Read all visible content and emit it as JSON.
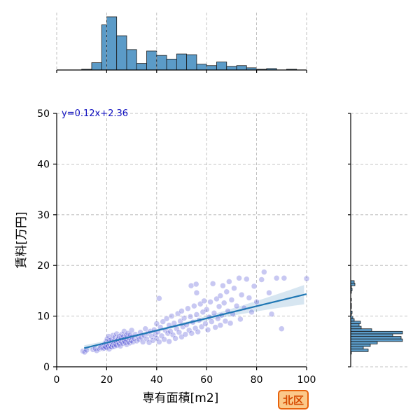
{
  "chart_data": {
    "type": "scatter",
    "title": "",
    "xlabel": "専有面積[m2]",
    "ylabel": "賃料[万円]",
    "xlim": [
      0,
      100
    ],
    "ylim": [
      0,
      50
    ],
    "x_ticks": [
      "0",
      "20",
      "40",
      "60",
      "80",
      "100"
    ],
    "y_ticks": [
      "0",
      "10",
      "20",
      "30",
      "40",
      "50"
    ],
    "grid": true,
    "regression": {
      "equation": "y=0.12x+2.36",
      "slope": 0.12,
      "intercept": 2.36,
      "x_range": [
        11,
        100
      ]
    },
    "badge": "北区",
    "colors": {
      "points": "#3a3ad0",
      "line": "#1f77b4",
      "hist": "#5b9bc8",
      "equation": "#1010c0",
      "badge_fill": "#fbc98a",
      "badge_border": "#e8620c"
    },
    "marginal_x_hist": {
      "bin_edges": [
        10,
        14,
        18,
        20,
        24,
        28,
        32,
        36,
        40,
        44,
        48,
        52,
        56,
        60,
        64,
        68,
        72,
        76,
        80,
        84,
        88,
        92,
        96,
        100
      ],
      "counts": [
        1,
        10,
        62,
        73,
        47,
        28,
        9,
        26,
        20,
        15,
        22,
        21,
        8,
        6,
        11,
        5,
        6,
        3,
        1,
        2,
        0,
        1,
        0
      ]
    },
    "marginal_y_hist": {
      "bin_edges": [
        2.5,
        3.0,
        3.5,
        4.0,
        4.5,
        5.0,
        5.5,
        6.0,
        6.5,
        7.0,
        7.5,
        8.0,
        8.5,
        9.0,
        9.5,
        10.0,
        10.5,
        11.0,
        11.5,
        12.0,
        12.5,
        13.0,
        13.5,
        14.0,
        14.5,
        15.0,
        15.5,
        16.0,
        16.5,
        17.0,
        17.5
      ],
      "counts": [
        1,
        25,
        18,
        28,
        38,
        74,
        72,
        60,
        74,
        30,
        15,
        12,
        14,
        5,
        3,
        1,
        2,
        0,
        1,
        1,
        0,
        1,
        0,
        0,
        1,
        2,
        1,
        6,
        5,
        0
      ]
    },
    "points": [
      [
        10.5,
        3.1
      ],
      [
        11.2,
        2.9
      ],
      [
        12.0,
        3.3
      ],
      [
        14.5,
        3.4
      ],
      [
        15.5,
        3.6
      ],
      [
        16.0,
        3.2
      ],
      [
        17.0,
        3.5
      ],
      [
        17.5,
        3.8
      ],
      [
        18.0,
        4.0
      ],
      [
        18.5,
        3.6
      ],
      [
        18.8,
        4.2
      ],
      [
        19.0,
        3.7
      ],
      [
        19.2,
        4.5
      ],
      [
        19.5,
        3.9
      ],
      [
        19.8,
        5.0
      ],
      [
        20.0,
        4.4
      ],
      [
        20.0,
        3.8
      ],
      [
        20.2,
        5.5
      ],
      [
        20.5,
        4.1
      ],
      [
        20.8,
        6.0
      ],
      [
        21.0,
        4.6
      ],
      [
        21.0,
        3.5
      ],
      [
        21.2,
        5.2
      ],
      [
        21.5,
        4.0
      ],
      [
        21.8,
        4.9
      ],
      [
        22.0,
        5.4
      ],
      [
        22.0,
        3.9
      ],
      [
        22.3,
        4.3
      ],
      [
        22.5,
        6.2
      ],
      [
        22.8,
        4.7
      ],
      [
        23.0,
        5.1
      ],
      [
        23.0,
        4.0
      ],
      [
        23.3,
        5.8
      ],
      [
        23.5,
        4.4
      ],
      [
        23.8,
        5.0
      ],
      [
        24.0,
        6.5
      ],
      [
        24.0,
        4.2
      ],
      [
        24.3,
        5.3
      ],
      [
        24.5,
        4.8
      ],
      [
        24.8,
        5.6
      ],
      [
        25.0,
        4.5
      ],
      [
        25.0,
        6.0
      ],
      [
        25.3,
        5.2
      ],
      [
        25.5,
        4.1
      ],
      [
        25.8,
        5.7
      ],
      [
        26.0,
        4.9
      ],
      [
        26.0,
        6.4
      ],
      [
        26.3,
        5.4
      ],
      [
        26.5,
        4.6
      ],
      [
        26.8,
        6.0
      ],
      [
        27.0,
        5.1
      ],
      [
        27.0,
        7.0
      ],
      [
        27.3,
        5.5
      ],
      [
        27.5,
        4.8
      ],
      [
        27.8,
        6.2
      ],
      [
        28.0,
        5.3
      ],
      [
        28.0,
        4.4
      ],
      [
        28.3,
        5.9
      ],
      [
        28.5,
        6.6
      ],
      [
        28.8,
        5.0
      ],
      [
        29.0,
        5.7
      ],
      [
        29.2,
        4.7
      ],
      [
        29.5,
        6.3
      ],
      [
        29.8,
        5.2
      ],
      [
        30.0,
        5.9
      ],
      [
        30.0,
        7.2
      ],
      [
        30.5,
        4.9
      ],
      [
        31.0,
        5.6
      ],
      [
        31.5,
        6.4
      ],
      [
        32.0,
        5.1
      ],
      [
        32.5,
        6.0
      ],
      [
        33.0,
        5.4
      ],
      [
        33.5,
        6.8
      ],
      [
        34.0,
        5.8
      ],
      [
        34.5,
        4.9
      ],
      [
        35.0,
        6.2
      ],
      [
        35.5,
        7.5
      ],
      [
        36.0,
        5.5
      ],
      [
        36.5,
        6.6
      ],
      [
        37.0,
        4.8
      ],
      [
        37.5,
        7.0
      ],
      [
        38.0,
        6.0
      ],
      [
        38.5,
        5.2
      ],
      [
        39.0,
        7.3
      ],
      [
        39.5,
        6.4
      ],
      [
        40.0,
        5.6
      ],
      [
        40.0,
        8.5
      ],
      [
        40.5,
        6.9
      ],
      [
        41.0,
        4.9
      ],
      [
        41.0,
        13.5
      ],
      [
        41.5,
        7.8
      ],
      [
        42.0,
        6.1
      ],
      [
        42.5,
        8.9
      ],
      [
        43.0,
        5.4
      ],
      [
        43.5,
        7.2
      ],
      [
        44.0,
        9.5
      ],
      [
        44.5,
        6.6
      ],
      [
        45.0,
        5.0
      ],
      [
        45.0,
        8.2
      ],
      [
        45.5,
        7.0
      ],
      [
        46.0,
        10.0
      ],
      [
        46.5,
        6.3
      ],
      [
        47.0,
        8.6
      ],
      [
        47.5,
        5.6
      ],
      [
        48.0,
        7.5
      ],
      [
        48.5,
        10.5
      ],
      [
        49.0,
        6.8
      ],
      [
        49.5,
        9.0
      ],
      [
        50.0,
        5.9
      ],
      [
        50.0,
        11.0
      ],
      [
        50.5,
        7.9
      ],
      [
        51.0,
        9.6
      ],
      [
        51.5,
        6.4
      ],
      [
        52.0,
        8.3
      ],
      [
        52.5,
        11.5
      ],
      [
        53.0,
        7.2
      ],
      [
        53.5,
        9.9
      ],
      [
        53.8,
        16.0
      ],
      [
        54.0,
        6.6
      ],
      [
        54.5,
        8.8
      ],
      [
        55.0,
        12.0
      ],
      [
        55.5,
        7.6
      ],
      [
        55.8,
        16.3
      ],
      [
        56.0,
        10.3
      ],
      [
        56.0,
        14.6
      ],
      [
        56.5,
        6.9
      ],
      [
        57.0,
        9.2
      ],
      [
        57.5,
        12.4
      ],
      [
        58.0,
        7.9
      ],
      [
        58.5,
        10.8
      ],
      [
        59.0,
        13.0
      ],
      [
        59.5,
        8.5
      ],
      [
        60.0,
        11.3
      ],
      [
        60.5,
        7.3
      ],
      [
        61.0,
        9.8
      ],
      [
        61.5,
        12.8
      ],
      [
        62.0,
        8.9
      ],
      [
        62.5,
        16.4
      ],
      [
        63.0,
        10.6
      ],
      [
        63.5,
        7.8
      ],
      [
        64.0,
        13.4
      ],
      [
        64.5,
        9.5
      ],
      [
        65.0,
        11.9
      ],
      [
        65.5,
        14.0
      ],
      [
        65.5,
        8.2
      ],
      [
        66.0,
        10.2
      ],
      [
        66.5,
        16.0
      ],
      [
        67.0,
        12.6
      ],
      [
        67.5,
        9.0
      ],
      [
        68.0,
        14.8
      ],
      [
        68.5,
        11.0
      ],
      [
        69.0,
        16.8
      ],
      [
        69.5,
        8.6
      ],
      [
        70.0,
        13.2
      ],
      [
        70.5,
        10.4
      ],
      [
        71.0,
        15.5
      ],
      [
        72.0,
        12.0
      ],
      [
        73.0,
        17.5
      ],
      [
        73.5,
        9.4
      ],
      [
        74.0,
        14.2
      ],
      [
        75.0,
        11.6
      ],
      [
        76.0,
        17.3
      ],
      [
        77.0,
        13.6
      ],
      [
        78.0,
        10.8
      ],
      [
        79.0,
        15.9
      ],
      [
        80.0,
        12.8
      ],
      [
        82.0,
        17.2
      ],
      [
        83.0,
        18.7
      ],
      [
        85.0,
        14.6
      ],
      [
        86.0,
        10.4
      ],
      [
        88.0,
        17.5
      ],
      [
        90.0,
        7.5
      ],
      [
        91.0,
        17.5
      ],
      [
        100.0,
        17.4
      ]
    ]
  }
}
